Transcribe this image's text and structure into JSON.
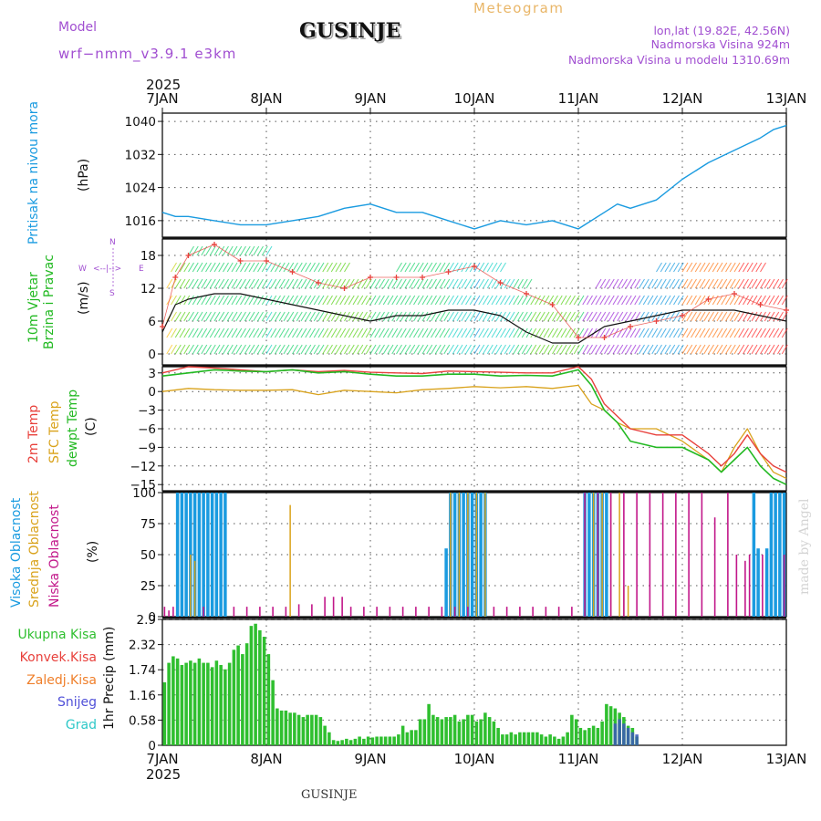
{
  "header": {
    "model_label": "Model",
    "model_name": "wrf−nmm_v3.9.1  e3km",
    "station": "GUSINJE",
    "product": "Meteogram",
    "coords": "lon,lat (19.82E, 42.56N)",
    "altitude": "Nadmorska Visina 924m",
    "model_altitude": "Nadmorska Visina u modelu 1310.69m",
    "footer_station": "GUSINJE",
    "credit": "made by Angel",
    "year_top": "2025",
    "year_bottom": "2025"
  },
  "colors": {
    "pressure": "#1a9be0",
    "temp2m": "#e8413c",
    "sfc": "#d9a21b",
    "dewpt": "#22b922",
    "high_cloud": "#1a9be0",
    "mid_cloud": "#d9a21b",
    "low_cloud": "#c2188a",
    "precip": "#2fbf2f",
    "purple": "#a14fd1",
    "orange": "#e9a94a"
  },
  "chart_data": [
    {
      "id": "pressure",
      "type": "line",
      "ylabel_left": "Pritisak na nivou mora",
      "units": "(hPa)",
      "yticks": [
        "1016",
        "1024",
        "1032",
        "1040"
      ],
      "ylim": [
        1012,
        1042
      ],
      "x_labels": [
        "7JAN",
        "8JAN",
        "9JAN",
        "10JAN",
        "11JAN",
        "12JAN",
        "13JAN"
      ],
      "x_hours": [
        0,
        24,
        48,
        72,
        96,
        120,
        144
      ],
      "series": [
        {
          "name": "Pritisak na nivou mora",
          "x": [
            0,
            3,
            6,
            12,
            18,
            24,
            30,
            36,
            42,
            48,
            54,
            60,
            66,
            72,
            75,
            78,
            84,
            90,
            96,
            102,
            105,
            108,
            114,
            120,
            126,
            132,
            138,
            141,
            144
          ],
          "values": [
            1018,
            1017,
            1017,
            1016,
            1015,
            1015,
            1016,
            1017,
            1019,
            1020,
            1018,
            1018,
            1016,
            1014,
            1015,
            1016,
            1015,
            1016,
            1014,
            1018,
            1020,
            1019,
            1021,
            1026,
            1030,
            1033,
            1036,
            1038,
            1039
          ]
        }
      ]
    },
    {
      "id": "wind",
      "type": "line",
      "ylabel_left": "10m Vjetar Brzina i Pravac",
      "units": "(m/s)",
      "compass": {
        "n": "N",
        "w": "W",
        "e": "E",
        "s": "S"
      },
      "yticks": [
        "0",
        "6",
        "12",
        "18"
      ],
      "ylim": [
        -2,
        21
      ],
      "series": [
        {
          "name": "Brzina",
          "x": [
            0,
            3,
            6,
            12,
            18,
            24,
            30,
            36,
            42,
            48,
            54,
            60,
            66,
            72,
            78,
            84,
            90,
            96,
            102,
            108,
            114,
            120,
            126,
            132,
            138,
            144
          ],
          "values": [
            4,
            9,
            10,
            11,
            11,
            10,
            9,
            8,
            7,
            6,
            7,
            7,
            8,
            8,
            7,
            4,
            2,
            2,
            5,
            6,
            7,
            8,
            8,
            8,
            7,
            6
          ]
        },
        {
          "name": "Udari",
          "x": [
            0,
            3,
            6,
            12,
            18,
            24,
            30,
            36,
            42,
            48,
            54,
            60,
            66,
            72,
            78,
            84,
            90,
            96,
            102,
            108,
            114,
            120,
            126,
            132,
            138,
            144
          ],
          "values": [
            5,
            14,
            18,
            20,
            17,
            17,
            15,
            13,
            12,
            14,
            14,
            14,
            15,
            16,
            13,
            11,
            9,
            3,
            3,
            5,
            6,
            7,
            10,
            11,
            9,
            8
          ]
        }
      ]
    },
    {
      "id": "temperature",
      "type": "line",
      "ylabel_left": [
        "2m Temp",
        "SFC Temp",
        "dewpt Temp"
      ],
      "units": "(C)",
      "yticks": [
        "3",
        "0",
        "−3",
        "−6",
        "−9",
        "−12",
        "−15"
      ],
      "ylim": [
        -16,
        4
      ],
      "series": [
        {
          "name": "2m Temp",
          "x": [
            0,
            6,
            12,
            18,
            24,
            30,
            36,
            42,
            48,
            54,
            60,
            66,
            72,
            78,
            84,
            90,
            96,
            99,
            102,
            105,
            108,
            114,
            120,
            126,
            129,
            132,
            135,
            138,
            141,
            144
          ],
          "values": [
            3,
            4,
            3.8,
            3.5,
            3.2,
            3.5,
            3.2,
            3.4,
            3.1,
            3,
            2.9,
            3.3,
            3.2,
            3.1,
            3,
            3,
            4,
            2,
            -2,
            -4,
            -6,
            -7,
            -7,
            -10,
            -12,
            -10,
            -7,
            -10,
            -12,
            -13
          ]
        },
        {
          "name": "SFC Temp",
          "x": [
            0,
            6,
            12,
            18,
            24,
            30,
            36,
            42,
            48,
            54,
            60,
            66,
            72,
            78,
            84,
            90,
            96,
            99,
            102,
            105,
            108,
            114,
            120,
            126,
            129,
            132,
            135,
            138,
            141,
            144
          ],
          "values": [
            0,
            0.5,
            0.3,
            0.2,
            0.2,
            0.3,
            -0.5,
            0.2,
            0,
            -0.2,
            0.3,
            0.5,
            0.8,
            0.6,
            0.8,
            0.5,
            1,
            -2,
            -3,
            -5,
            -6,
            -6,
            -8,
            -11,
            -13,
            -9,
            -6,
            -10,
            -13,
            -14
          ]
        },
        {
          "name": "dewpt Temp",
          "x": [
            0,
            6,
            12,
            18,
            24,
            30,
            36,
            42,
            48,
            54,
            60,
            66,
            72,
            78,
            84,
            90,
            96,
            99,
            102,
            105,
            108,
            114,
            120,
            126,
            129,
            132,
            135,
            138,
            141,
            144
          ],
          "values": [
            2.5,
            3,
            3.5,
            3.3,
            3.2,
            3.5,
            3,
            3.2,
            2.8,
            2.5,
            2.5,
            2.8,
            2.8,
            2.5,
            2.6,
            2.5,
            3.5,
            1,
            -3,
            -5,
            -8,
            -9,
            -9,
            -11,
            -13,
            -11,
            -9,
            -12,
            -14,
            -15
          ]
        }
      ]
    },
    {
      "id": "clouds",
      "type": "bar",
      "ylabel_left": [
        "Visoka Oblacnost",
        "Srednja Oblacnost",
        "Niska Oblacnost"
      ],
      "units": "(%)",
      "yticks": [
        "0",
        "25",
        "50",
        "75",
        "100"
      ],
      "ylim": [
        0,
        100
      ],
      "series": [
        {
          "name": "Visoka Oblacnost",
          "x": [
            3.5,
            4.5,
            5.5,
            6.5,
            7.5,
            8.5,
            9.5,
            10.5,
            11.5,
            12.5,
            13.5,
            14.5,
            65.5,
            66.5,
            67.5,
            68.5,
            69.5,
            70.5,
            71.5,
            72.5,
            73.5,
            74.5,
            97.5,
            98.5,
            99.5,
            100.5,
            101.5,
            102.5,
            136.5,
            137.5,
            139.5,
            140.5,
            141.5,
            142.5,
            143.5
          ],
          "values": [
            100,
            100,
            100,
            100,
            100,
            100,
            100,
            100,
            100,
            100,
            100,
            100,
            55,
            100,
            100,
            100,
            100,
            100,
            100,
            100,
            100,
            100,
            100,
            100,
            100,
            100,
            100,
            100,
            100,
            55,
            55,
            100,
            100,
            100,
            100
          ]
        },
        {
          "name": "Srednja Oblacnost",
          "x": [
            6.5,
            7.5,
            29.5,
            66.5,
            68.5,
            70.5,
            72.5,
            74.5,
            99.5,
            101.5,
            103.5,
            105.5,
            106.5,
            107.5
          ],
          "values": [
            50,
            45,
            90,
            100,
            100,
            100,
            100,
            100,
            100,
            100,
            100,
            100,
            25,
            25
          ]
        },
        {
          "name": "Niska Oblacnost",
          "x": [
            0.5,
            1.5,
            2.5,
            9.5,
            16.5,
            19.5,
            22.5,
            25.5,
            28.5,
            31.5,
            34.5,
            37.5,
            39.5,
            41.5,
            43.5,
            46.5,
            49.5,
            52.5,
            55.5,
            58.5,
            61.5,
            64.5,
            67.5,
            70.5,
            76.5,
            79.5,
            82.5,
            85.5,
            88.5,
            91.5,
            94.5,
            97.5,
            100.5,
            103.5,
            106.5,
            109.5,
            112.5,
            115.5,
            118.5,
            121.5,
            124.5,
            127.5,
            130.5,
            132.5,
            134.5,
            135.5,
            138.5,
            143.5
          ],
          "values": [
            8,
            5,
            8,
            8,
            8,
            8,
            8,
            8,
            8,
            10,
            10,
            16,
            16,
            16,
            8,
            8,
            8,
            8,
            8,
            8,
            8,
            8,
            8,
            8,
            8,
            8,
            8,
            8,
            8,
            8,
            8,
            100,
            100,
            100,
            100,
            100,
            100,
            100,
            100,
            100,
            100,
            80,
            100,
            50,
            45,
            50,
            50,
            50
          ]
        }
      ]
    },
    {
      "id": "precip",
      "type": "bar",
      "ylabel_left": "1hr Precip (mm)",
      "legend": [
        "Ukupna Kisa",
        "Konvek.Kisa",
        "Zaledj.Kisa",
        "Snijeg",
        "Grad"
      ],
      "legend_colors": [
        "#2fbf2f",
        "#e8413c",
        "#ef7f2a",
        "#5050d8",
        "#2ec8c8"
      ],
      "yticks": [
        "0",
        "0.58",
        "1.16",
        "1.74",
        "2.32",
        "2.9"
      ],
      "ylim": [
        0,
        2.9
      ],
      "series": [
        {
          "name": "Ukupna Kisa",
          "x_start": 1,
          "values": [
            1.45,
            1.9,
            2.05,
            2.0,
            1.85,
            1.9,
            1.95,
            1.9,
            2.0,
            1.9,
            1.9,
            1.8,
            1.95,
            1.85,
            1.75,
            1.9,
            2.2,
            2.3,
            2.1,
            2.35,
            2.75,
            2.8,
            2.65,
            2.5,
            2.1,
            1.5,
            0.85,
            0.8,
            0.8,
            0.75,
            0.75,
            0.7,
            0.65,
            0.7,
            0.7,
            0.7,
            0.65,
            0.45,
            0.3,
            0.12,
            0.1,
            0.12,
            0.15,
            0.12,
            0.15,
            0.2,
            0.15,
            0.2,
            0.18,
            0.2,
            0.2,
            0.2,
            0.2,
            0.2,
            0.25,
            0.45,
            0.3,
            0.35,
            0.35,
            0.6,
            0.6,
            0.95,
            0.7,
            0.65,
            0.6,
            0.65,
            0.65,
            0.7,
            0.55,
            0.6,
            0.7,
            0.7,
            0.55,
            0.6,
            0.75,
            0.65,
            0.55,
            0.4,
            0.25,
            0.25,
            0.3,
            0.25,
            0.3,
            0.3,
            0.3,
            0.3,
            0.3,
            0.25,
            0.2,
            0.25,
            0.2,
            0.15,
            0.2,
            0.3,
            0.7,
            0.6,
            0.4,
            0.35,
            0.4,
            0.45,
            0.4,
            0.55,
            0.95,
            0.9,
            0.85,
            0.75,
            0.65,
            0.45,
            0.4,
            0.2
          ]
        },
        {
          "name": "Snijeg",
          "x_start": 105,
          "values": [
            0.5,
            0.6,
            0.5,
            0.4,
            0.3,
            0.25
          ]
        }
      ]
    }
  ]
}
